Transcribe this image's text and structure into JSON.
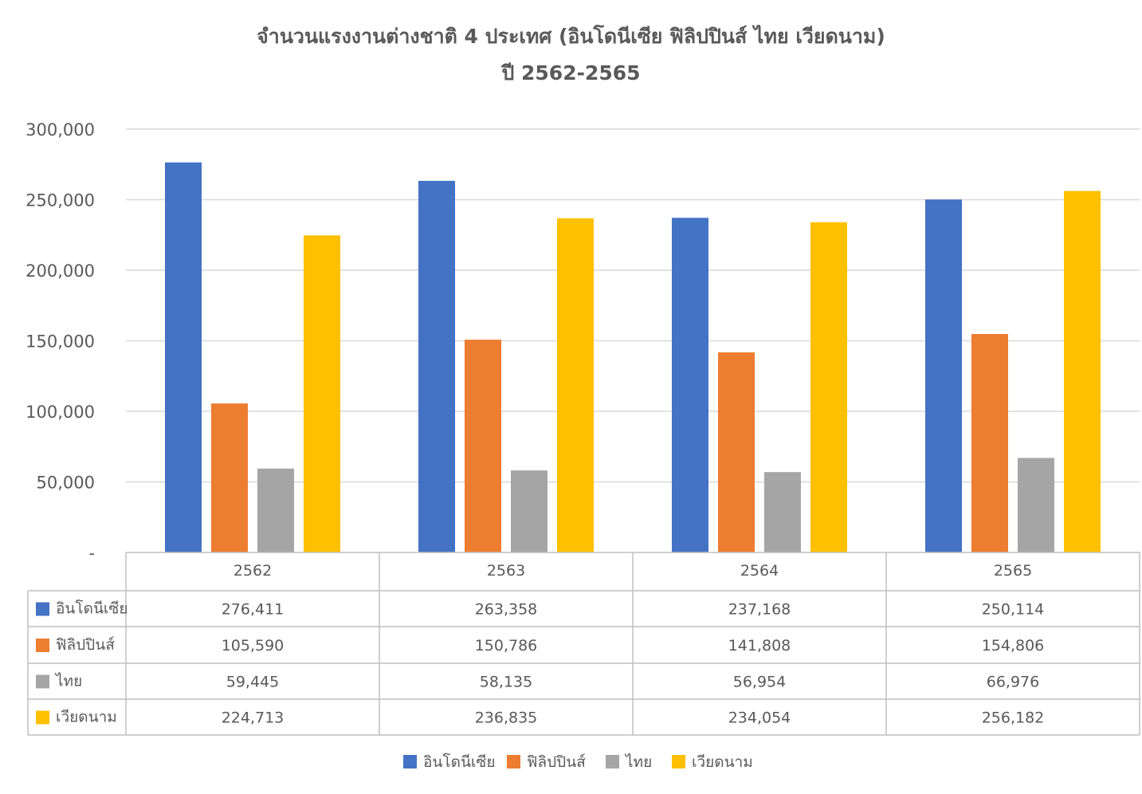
{
  "chart_data": {
    "type": "bar",
    "title": "จำนวนแรงงานต่างชาติ 4 ประเทศ (อินโดนีเซีย ฟิลิปปินส์ ไทย เวียดนาม)",
    "subtitle": "ปี 2562-2565",
    "categories": [
      "2562",
      "2563",
      "2564",
      "2565"
    ],
    "series": [
      {
        "name": "อินโดนีเซีย",
        "color": "#4472C4",
        "values": [
          276411,
          263358,
          237168,
          250114
        ],
        "labels": [
          "276,411",
          "263,358",
          "237,168",
          "250,114"
        ]
      },
      {
        "name": "ฟิลิปปินส์",
        "color": "#ED7D31",
        "values": [
          105590,
          150786,
          141808,
          154806
        ],
        "labels": [
          "105,590",
          "150,786",
          "141,808",
          "154,806"
        ]
      },
      {
        "name": "ไทย",
        "color": "#A5A5A5",
        "values": [
          59445,
          58135,
          56954,
          66976
        ],
        "labels": [
          "59,445",
          "58,135",
          "56,954",
          "66,976"
        ]
      },
      {
        "name": "เวียดนาม",
        "color": "#FFC000",
        "values": [
          224713,
          236835,
          234054,
          256182
        ],
        "labels": [
          "224,713",
          "236,835",
          "234,054",
          "256,182"
        ]
      }
    ],
    "ylim": [
      0,
      300000
    ],
    "yticks": [
      0,
      50000,
      100000,
      150000,
      200000,
      250000,
      300000
    ],
    "ytick_labels": [
      "-",
      "50,000",
      "100,000",
      "150,000",
      "200,000",
      "250,000",
      "300,000"
    ],
    "grid": true,
    "data_table": true,
    "legend": "bottom"
  }
}
